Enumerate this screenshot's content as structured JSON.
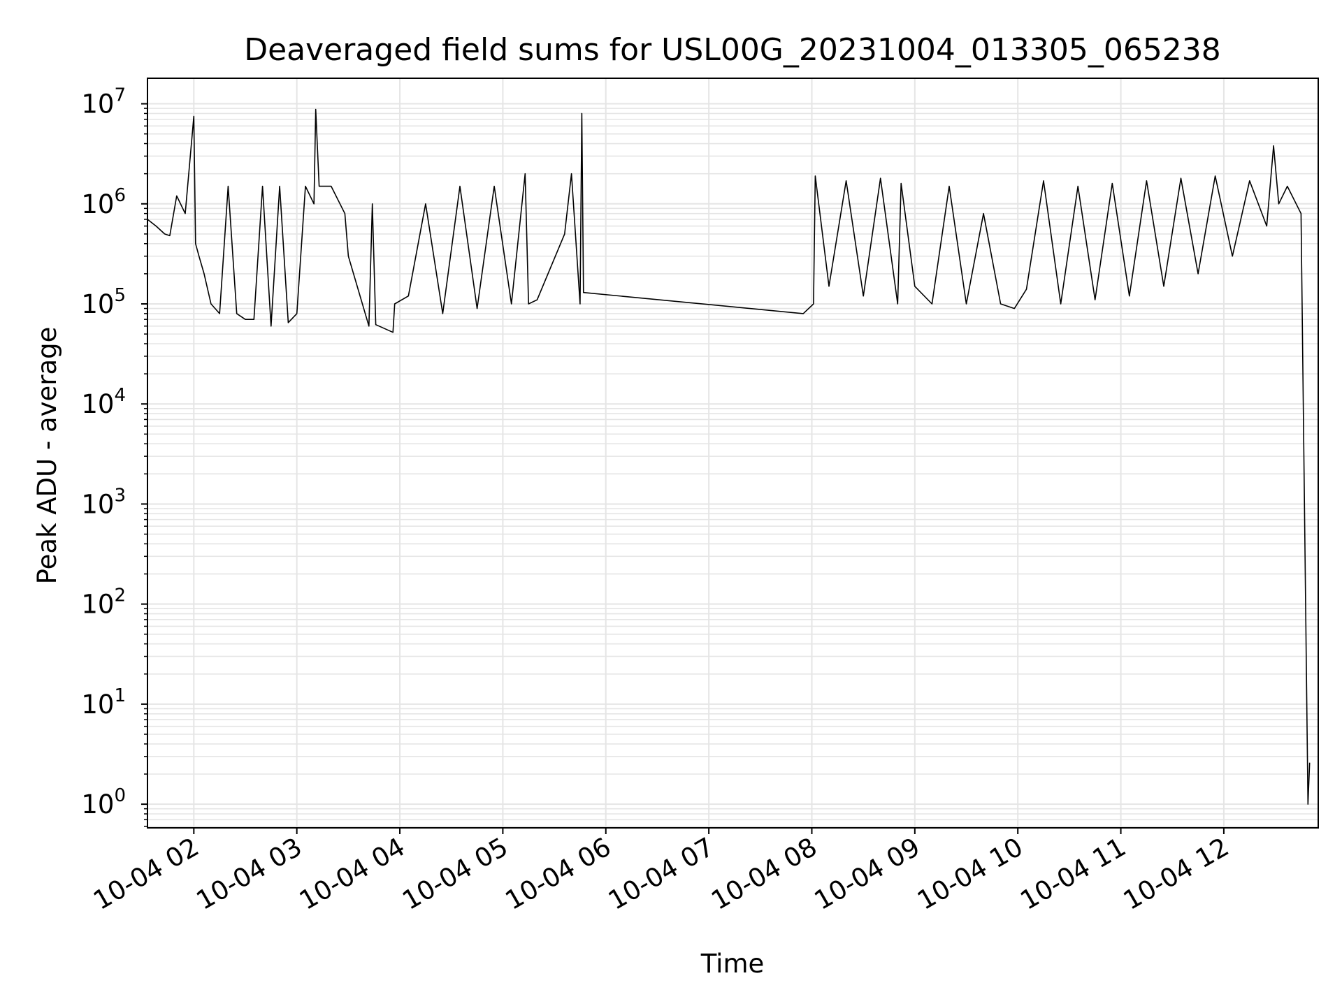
{
  "chart_data": {
    "type": "line",
    "title": "Deaveraged field sums for USL00G_20231004_013305_065238",
    "xlabel": "Time",
    "ylabel": "Peak ADU - average",
    "yscale": "log",
    "ylim": [
      0.58,
      18000000
    ],
    "xlim": [
      "2023-10-04 01:33",
      "2023-10-04 12:55"
    ],
    "grid": true,
    "line_color": "#000000",
    "grid_color": "#e5e5e5",
    "x_ticks": [
      {
        "value": "2023-10-04 02:00",
        "label": "10-04 02"
      },
      {
        "value": "2023-10-04 03:00",
        "label": "10-04 03"
      },
      {
        "value": "2023-10-04 04:00",
        "label": "10-04 04"
      },
      {
        "value": "2023-10-04 05:00",
        "label": "10-04 05"
      },
      {
        "value": "2023-10-04 06:00",
        "label": "10-04 06"
      },
      {
        "value": "2023-10-04 07:00",
        "label": "10-04 07"
      },
      {
        "value": "2023-10-04 08:00",
        "label": "10-04 08"
      },
      {
        "value": "2023-10-04 09:00",
        "label": "10-04 09"
      },
      {
        "value": "2023-10-04 10:00",
        "label": "10-04 10"
      },
      {
        "value": "2023-10-04 11:00",
        "label": "10-04 11"
      },
      {
        "value": "2023-10-04 12:00",
        "label": "10-04 12"
      }
    ],
    "y_ticks": [
      {
        "value": 1,
        "base": "10",
        "exp": "0"
      },
      {
        "value": 10,
        "base": "10",
        "exp": "1"
      },
      {
        "value": 100,
        "base": "10",
        "exp": "2"
      },
      {
        "value": 1000,
        "base": "10",
        "exp": "3"
      },
      {
        "value": 10000,
        "base": "10",
        "exp": "4"
      },
      {
        "value": 100000,
        "base": "10",
        "exp": "5"
      },
      {
        "value": 1000000,
        "base": "10",
        "exp": "6"
      },
      {
        "value": 10000000,
        "base": "10",
        "exp": "7"
      }
    ],
    "series": [
      {
        "x": [
          "2023-10-04 01:33",
          "2023-10-04 01:38",
          "2023-10-04 01:43",
          "2023-10-04 01:46",
          "2023-10-04 01:50",
          "2023-10-04 01:55",
          "2023-10-04 02:00",
          "2023-10-04 02:01",
          "2023-10-04 02:03",
          "2023-10-04 02:06",
          "2023-10-04 02:10",
          "2023-10-04 02:15",
          "2023-10-04 02:20",
          "2023-10-04 02:25",
          "2023-10-04 02:30",
          "2023-10-04 02:35",
          "2023-10-04 02:40",
          "2023-10-04 02:45",
          "2023-10-04 02:50",
          "2023-10-04 02:55",
          "2023-10-04 03:00",
          "2023-10-04 03:05",
          "2023-10-04 03:10",
          "2023-10-04 03:11",
          "2023-10-04 03:13",
          "2023-10-04 03:20",
          "2023-10-04 03:28",
          "2023-10-04 03:30",
          "2023-10-04 03:42",
          "2023-10-04 03:44",
          "2023-10-04 03:46",
          "2023-10-04 03:56",
          "2023-10-04 03:57",
          "2023-10-04 04:05",
          "2023-10-04 04:15",
          "2023-10-04 04:25",
          "2023-10-04 04:35",
          "2023-10-04 04:45",
          "2023-10-04 04:55",
          "2023-10-04 05:05",
          "2023-10-04 05:13",
          "2023-10-04 05:15",
          "2023-10-04 05:20",
          "2023-10-04 05:36",
          "2023-10-04 05:40",
          "2023-10-04 05:45",
          "2023-10-04 05:46",
          "2023-10-04 05:47",
          "2023-10-04 07:55",
          "2023-10-04 08:01",
          "2023-10-04 08:02",
          "2023-10-04 08:10",
          "2023-10-04 08:20",
          "2023-10-04 08:30",
          "2023-10-04 08:40",
          "2023-10-04 08:50",
          "2023-10-04 08:52",
          "2023-10-04 09:00",
          "2023-10-04 09:10",
          "2023-10-04 09:20",
          "2023-10-04 09:30",
          "2023-10-04 09:40",
          "2023-10-04 09:50",
          "2023-10-04 09:58",
          "2023-10-04 10:05",
          "2023-10-04 10:15",
          "2023-10-04 10:25",
          "2023-10-04 10:35",
          "2023-10-04 10:45",
          "2023-10-04 10:55",
          "2023-10-04 11:05",
          "2023-10-04 11:15",
          "2023-10-04 11:25",
          "2023-10-04 11:35",
          "2023-10-04 11:45",
          "2023-10-04 11:55",
          "2023-10-04 12:05",
          "2023-10-04 12:15",
          "2023-10-04 12:25",
          "2023-10-04 12:29",
          "2023-10-04 12:32",
          "2023-10-04 12:37",
          "2023-10-04 12:45",
          "2023-10-04 12:49",
          "2023-10-04 12:50"
        ],
        "y": [
          700000,
          600000,
          500000,
          480000,
          1200000,
          800000,
          7500000,
          400000,
          300000,
          200000,
          100000,
          80000,
          1500000,
          80000,
          70000,
          70000,
          1500000,
          60000,
          1500000,
          65000,
          80000,
          1500000,
          1000000,
          8800000,
          1500000,
          1500000,
          800000,
          300000,
          60000,
          1000000,
          62000,
          52000,
          100000,
          120000,
          1000000,
          80000,
          1500000,
          90000,
          1500000,
          100000,
          2000000,
          100000,
          110000,
          500000,
          2000000,
          100000,
          8000000,
          130000,
          80000,
          100000,
          1900000,
          150000,
          1700000,
          120000,
          1800000,
          100000,
          1600000,
          150000,
          100000,
          1500000,
          100000,
          800000,
          100000,
          90000,
          140000,
          1700000,
          100000,
          1500000,
          110000,
          1600000,
          120000,
          1700000,
          150000,
          1800000,
          200000,
          1900000,
          300000,
          1700000,
          600000,
          3800000,
          1000000,
          1500000,
          800000,
          1.0,
          2.6
        ]
      }
    ]
  }
}
